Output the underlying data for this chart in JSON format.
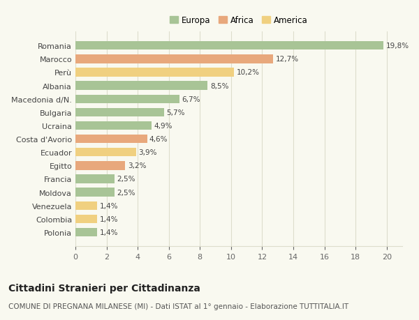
{
  "countries": [
    "Romania",
    "Marocco",
    "Perù",
    "Albania",
    "Macedonia d/N.",
    "Bulgaria",
    "Ucraina",
    "Costa d'Avorio",
    "Ecuador",
    "Egitto",
    "Francia",
    "Moldova",
    "Venezuela",
    "Colombia",
    "Polonia"
  ],
  "values": [
    19.8,
    12.7,
    10.2,
    8.5,
    6.7,
    5.7,
    4.9,
    4.6,
    3.9,
    3.2,
    2.5,
    2.5,
    1.4,
    1.4,
    1.4
  ],
  "labels": [
    "19,8%",
    "12,7%",
    "10,2%",
    "8,5%",
    "6,7%",
    "5,7%",
    "4,9%",
    "4,6%",
    "3,9%",
    "3,2%",
    "2,5%",
    "2,5%",
    "1,4%",
    "1,4%",
    "1,4%"
  ],
  "categories": [
    "Europa",
    "Africa",
    "America"
  ],
  "continent": [
    "Europa",
    "Africa",
    "America",
    "Europa",
    "Europa",
    "Europa",
    "Europa",
    "Africa",
    "America",
    "Africa",
    "Europa",
    "Europa",
    "America",
    "America",
    "Europa"
  ],
  "colors": {
    "Europa": "#a8c496",
    "Africa": "#e8a87c",
    "America": "#f0d080"
  },
  "bg_color": "#f9f9f0",
  "grid_color": "#ddddcc",
  "title": "Cittadini Stranieri per Cittadinanza",
  "subtitle": "COMUNE DI PREGNANA MILANESE (MI) - Dati ISTAT al 1° gennaio - Elaborazione TUTTITALIA.IT",
  "xlim": [
    0,
    21
  ],
  "xticks": [
    0,
    2,
    4,
    6,
    8,
    10,
    12,
    14,
    16,
    18,
    20
  ],
  "title_fontsize": 10,
  "subtitle_fontsize": 7.5,
  "label_fontsize": 7.5,
  "tick_fontsize": 8,
  "bar_height": 0.65
}
